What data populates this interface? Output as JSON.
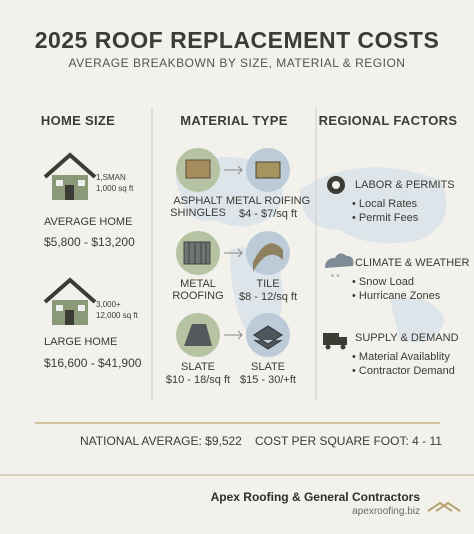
{
  "header": {
    "title": "2025 ROOF REPLACEMENT COSTS",
    "subtitle": "AVERAGE BREAKBOWN BY SIZE, MATERIAL & REGION"
  },
  "home_size": {
    "heading": "HOME SIZE",
    "homes": [
      {
        "note": [
          "1,SMAN",
          "1,000 sq ft"
        ],
        "label": "AVERAGE HOME",
        "price": "$5,800 - $13,200"
      },
      {
        "note": [
          "3,000+",
          "12,000 sq ft"
        ],
        "label": "LARGE HOME",
        "price": "$16,600 - $41,900"
      }
    ]
  },
  "material_type": {
    "heading": "MATERIAL TYPE",
    "rows": [
      {
        "from": {
          "name": "ASPHALT SHINGLES"
        },
        "to": {
          "name": "METAL ROIFING",
          "price": "$4 - $7/sq ft"
        }
      },
      {
        "from": {
          "name": "METAL ROOFING"
        },
        "to": {
          "name": "TILE",
          "price": "$8 - 12/sq ft"
        }
      },
      {
        "from": {
          "name": "SLATE",
          "price": "$10 - 18/sq ft"
        },
        "to": {
          "name": "SLATE",
          "price": "$15 - 30/+ft"
        }
      }
    ]
  },
  "regional_factors": {
    "heading": "REGIONAL FACTORS",
    "factors": [
      {
        "title": "LABOR & PERMITS",
        "items": [
          "Local Rates",
          "Permit Fees"
        ]
      },
      {
        "title": "CLIMATE & WEATHER",
        "items": [
          "Snow Load",
          "Hurricane Zones"
        ]
      },
      {
        "title": "SUPPLY & DEMAND",
        "items": [
          "Material Availablity",
          "Contractor Demand"
        ]
      }
    ]
  },
  "summary": {
    "national_average": "NATIONAL AVERAGE: $9,522",
    "cost_per_sqft": "COST PER SQUARE FOOT: 4 - 11"
  },
  "footer": {
    "company": "Apex Roofing & General Contractors",
    "website": "apexroofing.biz"
  }
}
